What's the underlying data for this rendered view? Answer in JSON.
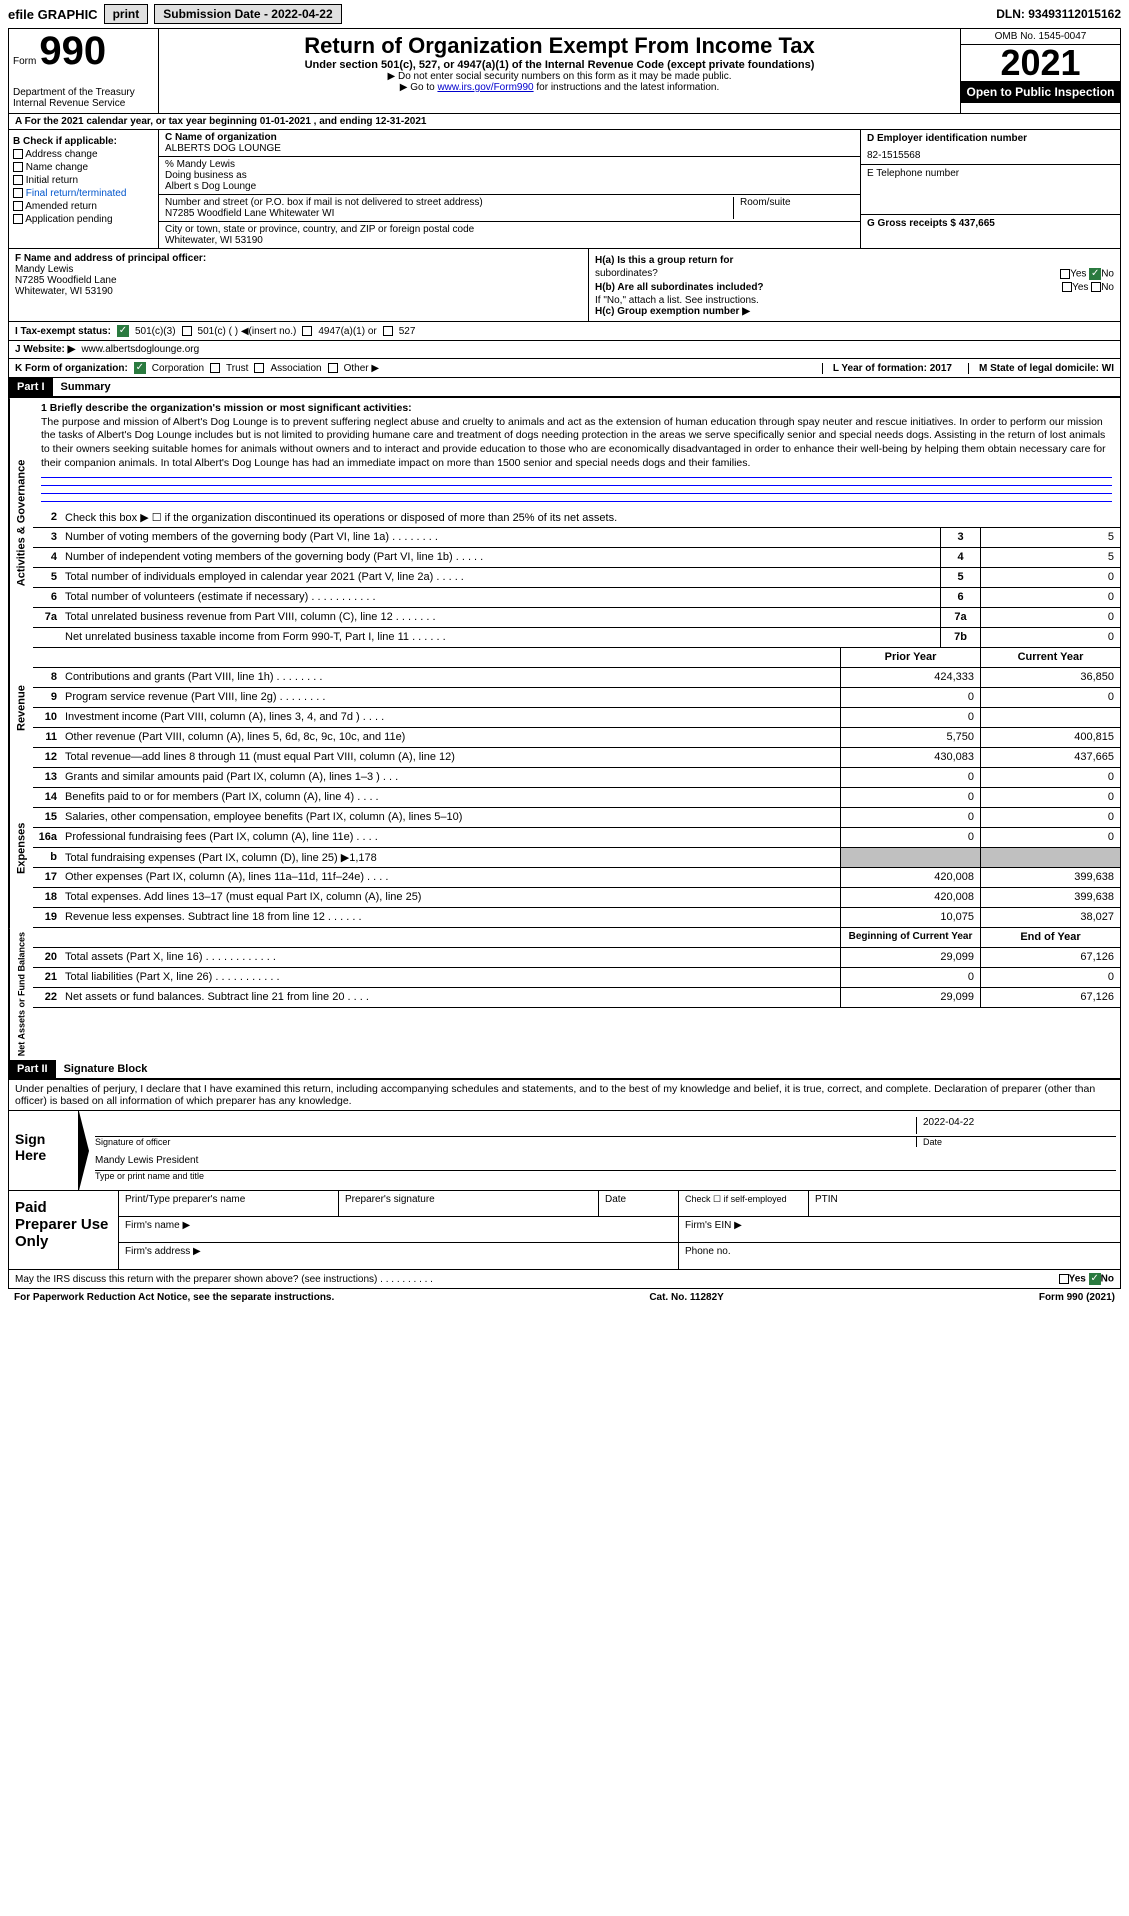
{
  "topbar": {
    "efile": "efile GRAPHIC",
    "print": "print",
    "submission_label": "Submission Date - 2022-04-22",
    "dln": "DLN: 93493112015162"
  },
  "header": {
    "form_label": "Form",
    "form_num": "990",
    "dept1": "Department of the Treasury",
    "dept2": "Internal Revenue Service",
    "title": "Return of Organization Exempt From Income Tax",
    "subtitle": "Under section 501(c), 527, or 4947(a)(1) of the Internal Revenue Code (except private foundations)",
    "note1": "▶ Do not enter social security numbers on this form as it may be made public.",
    "note2_pre": "▶ Go to ",
    "note2_link": "www.irs.gov/Form990",
    "note2_post": " for instructions and the latest information.",
    "omb": "OMB No. 1545-0047",
    "year": "2021",
    "inspection": "Open to Public Inspection"
  },
  "row_a": "A For the 2021 calendar year, or tax year beginning 01-01-2021    , and ending 12-31-2021",
  "col_b": {
    "header": "B Check if applicable:",
    "items": [
      "Address change",
      "Name change",
      "Initial return",
      "Final return/terminated",
      "Amended return",
      "Application pending"
    ]
  },
  "col_c": {
    "name_label": "C Name of organization",
    "name": "ALBERTS DOG LOUNGE",
    "care_label": "% Mandy Lewis",
    "dba_label": "Doing business as",
    "dba": "Albert s Dog Lounge",
    "street_label": "Number and street (or P.O. box if mail is not delivered to street address)",
    "street": "N7285 Woodfield Lane Whitewater WI",
    "room_label": "Room/suite",
    "city_label": "City or town, state or province, country, and ZIP or foreign postal code",
    "city": "Whitewater, WI  53190"
  },
  "col_d": {
    "ein_label": "D Employer identification number",
    "ein": "82-1515568",
    "phone_label": "E Telephone number",
    "receipts_label": "G Gross receipts $ 437,665"
  },
  "col_f": {
    "label": "F  Name and address of principal officer:",
    "name": "Mandy Lewis",
    "street": "N7285 Woodfield Lane",
    "city": "Whitewater, WI  53190"
  },
  "col_h": {
    "ha_label": "H(a)  Is this a group return for",
    "ha_sub": "subordinates?",
    "hb_label": "H(b)  Are all subordinates included?",
    "hb_note": "If \"No,\" attach a list. See instructions.",
    "hc_label": "H(c)  Group exemption number ▶",
    "yes": "Yes",
    "no": "No"
  },
  "row_i": {
    "label": "I    Tax-exempt status:",
    "opt1": "501(c)(3)",
    "opt2": "501(c) (  ) ◀(insert no.)",
    "opt3": "4947(a)(1) or",
    "opt4": "527"
  },
  "row_j": {
    "label": "J   Website: ▶",
    "value": "www.albertsdoglounge.org"
  },
  "row_k": {
    "label": "K Form of organization:",
    "opts": [
      "Corporation",
      "Trust",
      "Association",
      "Other ▶"
    ]
  },
  "row_l": {
    "l_label": "L Year of formation: 2017",
    "m_label": "M State of legal domicile: WI"
  },
  "part1": {
    "header": "Part I",
    "title": "Summary"
  },
  "mission": {
    "label": "1  Briefly describe the organization's mission or most significant activities:",
    "text": "The purpose and mission of Albert's Dog Lounge is to prevent suffering neglect abuse and cruelty to animals and act as the extension of human education through spay neuter and rescue initiatives. In order to perform our mission the tasks of Albert's Dog Lounge includes but is not limited to providing humane care and treatment of dogs needing protection in the areas we serve specifically senior and special needs dogs. Assisting in the return of lost animals to their owners seeking suitable homes for animals without owners and to interact and provide education to those who are economically disadvantaged in order to enhance their well-being by helping them obtain necessary care for their companion animals. In total Albert's Dog Lounge has had an immediate impact on more than 1500 senior and special needs dogs and their families."
  },
  "line2": "Check this box ▶ ☐ if the organization discontinued its operations or disposed of more than 25% of its net assets.",
  "governance_rows": [
    {
      "n": "3",
      "d": "Number of voting members of the governing body (Part VI, line 1a)   .    .    .    .    .    .    .    .",
      "sn": "3",
      "v": "5"
    },
    {
      "n": "4",
      "d": "Number of independent voting members of the governing body (Part VI, line 1b)  .    .    .    .    .",
      "sn": "4",
      "v": "5"
    },
    {
      "n": "5",
      "d": "Total number of individuals employed in calendar year 2021 (Part V, line 2a)    .    .    .    .    .",
      "sn": "5",
      "v": "0"
    },
    {
      "n": "6",
      "d": "Total number of volunteers (estimate if necessary)   .    .    .    .    .    .    .    .    .    .    .",
      "sn": "6",
      "v": "0"
    },
    {
      "n": "7a",
      "d": "Total unrelated business revenue from Part VIII, column (C), line 12   .    .    .    .    .    .    .",
      "sn": "7a",
      "v": "0"
    },
    {
      "n": "",
      "d": "Net unrelated business taxable income from Form 990-T, Part I, line 11   .    .    .    .    .    .",
      "sn": "7b",
      "v": "0"
    }
  ],
  "year_header": {
    "prior": "Prior Year",
    "current": "Current Year"
  },
  "revenue_rows": [
    {
      "n": "8",
      "d": "Contributions and grants (Part VIII, line 1h)  .    .    .    .    .    .    .    .",
      "p": "424,333",
      "c": "36,850"
    },
    {
      "n": "9",
      "d": "Program service revenue (Part VIII, line 2g)   .    .    .    .    .    .    .    .",
      "p": "0",
      "c": "0"
    },
    {
      "n": "10",
      "d": "Investment income (Part VIII, column (A), lines 3, 4, and 7d )   .    .    .    .",
      "p": "0",
      "c": ""
    },
    {
      "n": "11",
      "d": "Other revenue (Part VIII, column (A), lines 5, 6d, 8c, 9c, 10c, and 11e)",
      "p": "5,750",
      "c": "400,815"
    },
    {
      "n": "12",
      "d": "Total revenue—add lines 8 through 11 (must equal Part VIII, column (A), line 12)",
      "p": "430,083",
      "c": "437,665"
    }
  ],
  "expense_rows": [
    {
      "n": "13",
      "d": "Grants and similar amounts paid (Part IX, column (A), lines 1–3 )  .    .    .",
      "p": "0",
      "c": "0"
    },
    {
      "n": "14",
      "d": "Benefits paid to or for members (Part IX, column (A), line 4)  .    .    .    .",
      "p": "0",
      "c": "0"
    },
    {
      "n": "15",
      "d": "Salaries, other compensation, employee benefits (Part IX, column (A), lines 5–10)",
      "p": "0",
      "c": "0"
    },
    {
      "n": "16a",
      "d": "Professional fundraising fees (Part IX, column (A), line 11e)  .    .    .    .",
      "p": "0",
      "c": "0"
    },
    {
      "n": "b",
      "d": "Total fundraising expenses (Part IX, column (D), line 25) ▶1,178",
      "p": "",
      "c": "",
      "gray": true
    },
    {
      "n": "17",
      "d": "Other expenses (Part IX, column (A), lines 11a–11d, 11f–24e)   .    .    .    .",
      "p": "420,008",
      "c": "399,638"
    },
    {
      "n": "18",
      "d": "Total expenses. Add lines 13–17 (must equal Part IX, column (A), line 25)",
      "p": "420,008",
      "c": "399,638"
    },
    {
      "n": "19",
      "d": "Revenue less expenses. Subtract line 18 from line 12   .    .    .    .    .    .",
      "p": "10,075",
      "c": "38,027"
    }
  ],
  "balance_header": {
    "begin": "Beginning of Current Year",
    "end": "End of Year"
  },
  "balance_rows": [
    {
      "n": "20",
      "d": "Total assets (Part X, line 16)  .    .    .    .    .    .    .    .    .    .    .    .",
      "p": "29,099",
      "c": "67,126"
    },
    {
      "n": "21",
      "d": "Total liabilities (Part X, line 26)   .    .    .    .    .    .    .    .    .    .    .",
      "p": "0",
      "c": "0"
    },
    {
      "n": "22",
      "d": "Net assets or fund balances. Subtract line 21 from line 20   .    .    .    .",
      "p": "29,099",
      "c": "67,126"
    }
  ],
  "part2": {
    "header": "Part II",
    "title": "Signature Block"
  },
  "declaration": "Under penalties of perjury, I declare that I have examined this return, including accompanying schedules and statements, and to the best of my knowledge and belief, it is true, correct, and complete. Declaration of preparer (other than officer) is based on all information of which preparer has any knowledge.",
  "sign": {
    "label": "Sign Here",
    "sig_label": "Signature of officer",
    "date": "2022-04-22",
    "date_label": "Date",
    "name": "Mandy Lewis President",
    "name_label": "Type or print name and title"
  },
  "preparer": {
    "label": "Paid Preparer Use Only",
    "name_label": "Print/Type preparer's name",
    "sig_label": "Preparer's signature",
    "date_label": "Date",
    "check_label": "Check ☐ if self-employed",
    "ptin_label": "PTIN",
    "firm_name_label": "Firm's name    ▶",
    "firm_ein_label": "Firm's EIN ▶",
    "firm_addr_label": "Firm's address ▶",
    "phone_label": "Phone no."
  },
  "irs_discuss": "May the IRS discuss this return with the preparer shown above? (see instructions)   .    .    .    .    .    .    .    .    .    .",
  "footer": {
    "left": "For Paperwork Reduction Act Notice, see the separate instructions.",
    "center": "Cat. No. 11282Y",
    "right": "Form 990 (2021)"
  },
  "vert_labels": {
    "gov": "Activities & Governance",
    "rev": "Revenue",
    "exp": "Expenses",
    "bal": "Net Assets or Fund Balances"
  }
}
